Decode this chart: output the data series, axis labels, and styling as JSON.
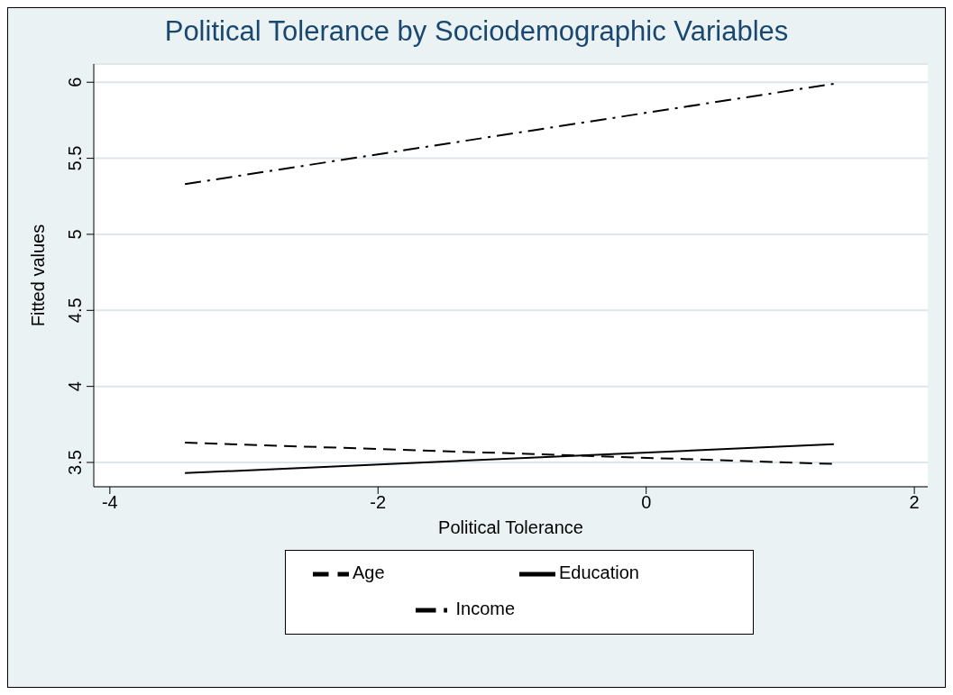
{
  "chart_data": {
    "type": "line",
    "title": "Political Tolerance by Sociodemographic Variables",
    "xlabel": "Political Tolerance",
    "ylabel": "Fitted values",
    "x": [
      -3.44,
      1.4
    ],
    "series": [
      {
        "name": "Age",
        "color": "#000000",
        "line_style": "dashed",
        "values": [
          3.63,
          3.49
        ]
      },
      {
        "name": "Education",
        "color": "#000000",
        "line_style": "solid",
        "values": [
          3.43,
          3.62
        ]
      },
      {
        "name": "Income",
        "color": "#000000",
        "line_style": "dashdot",
        "values": [
          5.33,
          5.99
        ]
      }
    ],
    "xlim": [
      -4.12,
      2.1
    ],
    "xticks": [
      -4,
      -2,
      0,
      2
    ],
    "ylim": [
      3.34,
      6.12
    ],
    "yticks": [
      3.5,
      4,
      4.5,
      5,
      5.5,
      6
    ],
    "grid": "y",
    "legend": "bottom",
    "marker": "none"
  }
}
